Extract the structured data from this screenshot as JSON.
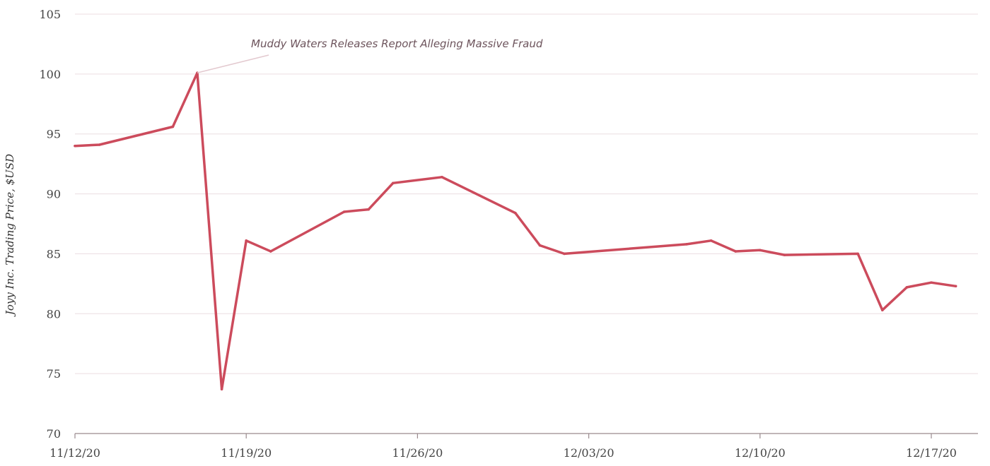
{
  "chart_data": {
    "type": "line",
    "title": "",
    "xlabel": "",
    "ylabel": "Joyy Inc. Trading Price, $USD",
    "ylim": [
      70,
      105
    ],
    "yticks": [
      70,
      75,
      80,
      85,
      90,
      95,
      100,
      105
    ],
    "xlim": [
      "2020-11-12",
      "2020-12-19"
    ],
    "xticks": [
      {
        "date": "2020-11-12",
        "label": "11/12/20"
      },
      {
        "date": "2020-11-19",
        "label": "11/19/20"
      },
      {
        "date": "2020-11-26",
        "label": "11/26/20"
      },
      {
        "date": "2020-12-03",
        "label": "12/03/20"
      },
      {
        "date": "2020-12-10",
        "label": "12/10/20"
      },
      {
        "date": "2020-12-17",
        "label": "12/17/20"
      }
    ],
    "grid": "horizontal",
    "line_color": "#cc4b5c",
    "series": [
      {
        "name": "",
        "points": [
          {
            "x": "2020-11-12",
            "y": 94.0
          },
          {
            "x": "2020-11-13",
            "y": 94.1
          },
          {
            "x": "2020-11-16",
            "y": 95.6
          },
          {
            "x": "2020-11-17",
            "y": 100.1
          },
          {
            "x": "2020-11-18",
            "y": 73.7
          },
          {
            "x": "2020-11-19",
            "y": 86.1
          },
          {
            "x": "2020-11-20",
            "y": 85.2
          },
          {
            "x": "2020-11-23",
            "y": 88.5
          },
          {
            "x": "2020-11-24",
            "y": 88.7
          },
          {
            "x": "2020-11-25",
            "y": 90.9
          },
          {
            "x": "2020-11-27",
            "y": 91.4
          },
          {
            "x": "2020-11-30",
            "y": 88.4
          },
          {
            "x": "2020-12-01",
            "y": 85.7
          },
          {
            "x": "2020-12-02",
            "y": 85.0
          },
          {
            "x": "2020-12-07",
            "y": 85.8
          },
          {
            "x": "2020-12-08",
            "y": 86.1
          },
          {
            "x": "2020-12-09",
            "y": 85.2
          },
          {
            "x": "2020-12-10",
            "y": 85.3
          },
          {
            "x": "2020-12-11",
            "y": 84.9
          },
          {
            "x": "2020-12-14",
            "y": 85.0
          },
          {
            "x": "2020-12-15",
            "y": 80.3
          },
          {
            "x": "2020-12-16",
            "y": 82.2
          },
          {
            "x": "2020-12-17",
            "y": 82.6
          },
          {
            "x": "2020-12-18",
            "y": 82.3
          }
        ]
      }
    ],
    "annotations": [
      {
        "text": "Muddy Waters Releases Report Alleging Massive Fraud",
        "x": "2020-11-17",
        "y": 100.1
      }
    ]
  }
}
